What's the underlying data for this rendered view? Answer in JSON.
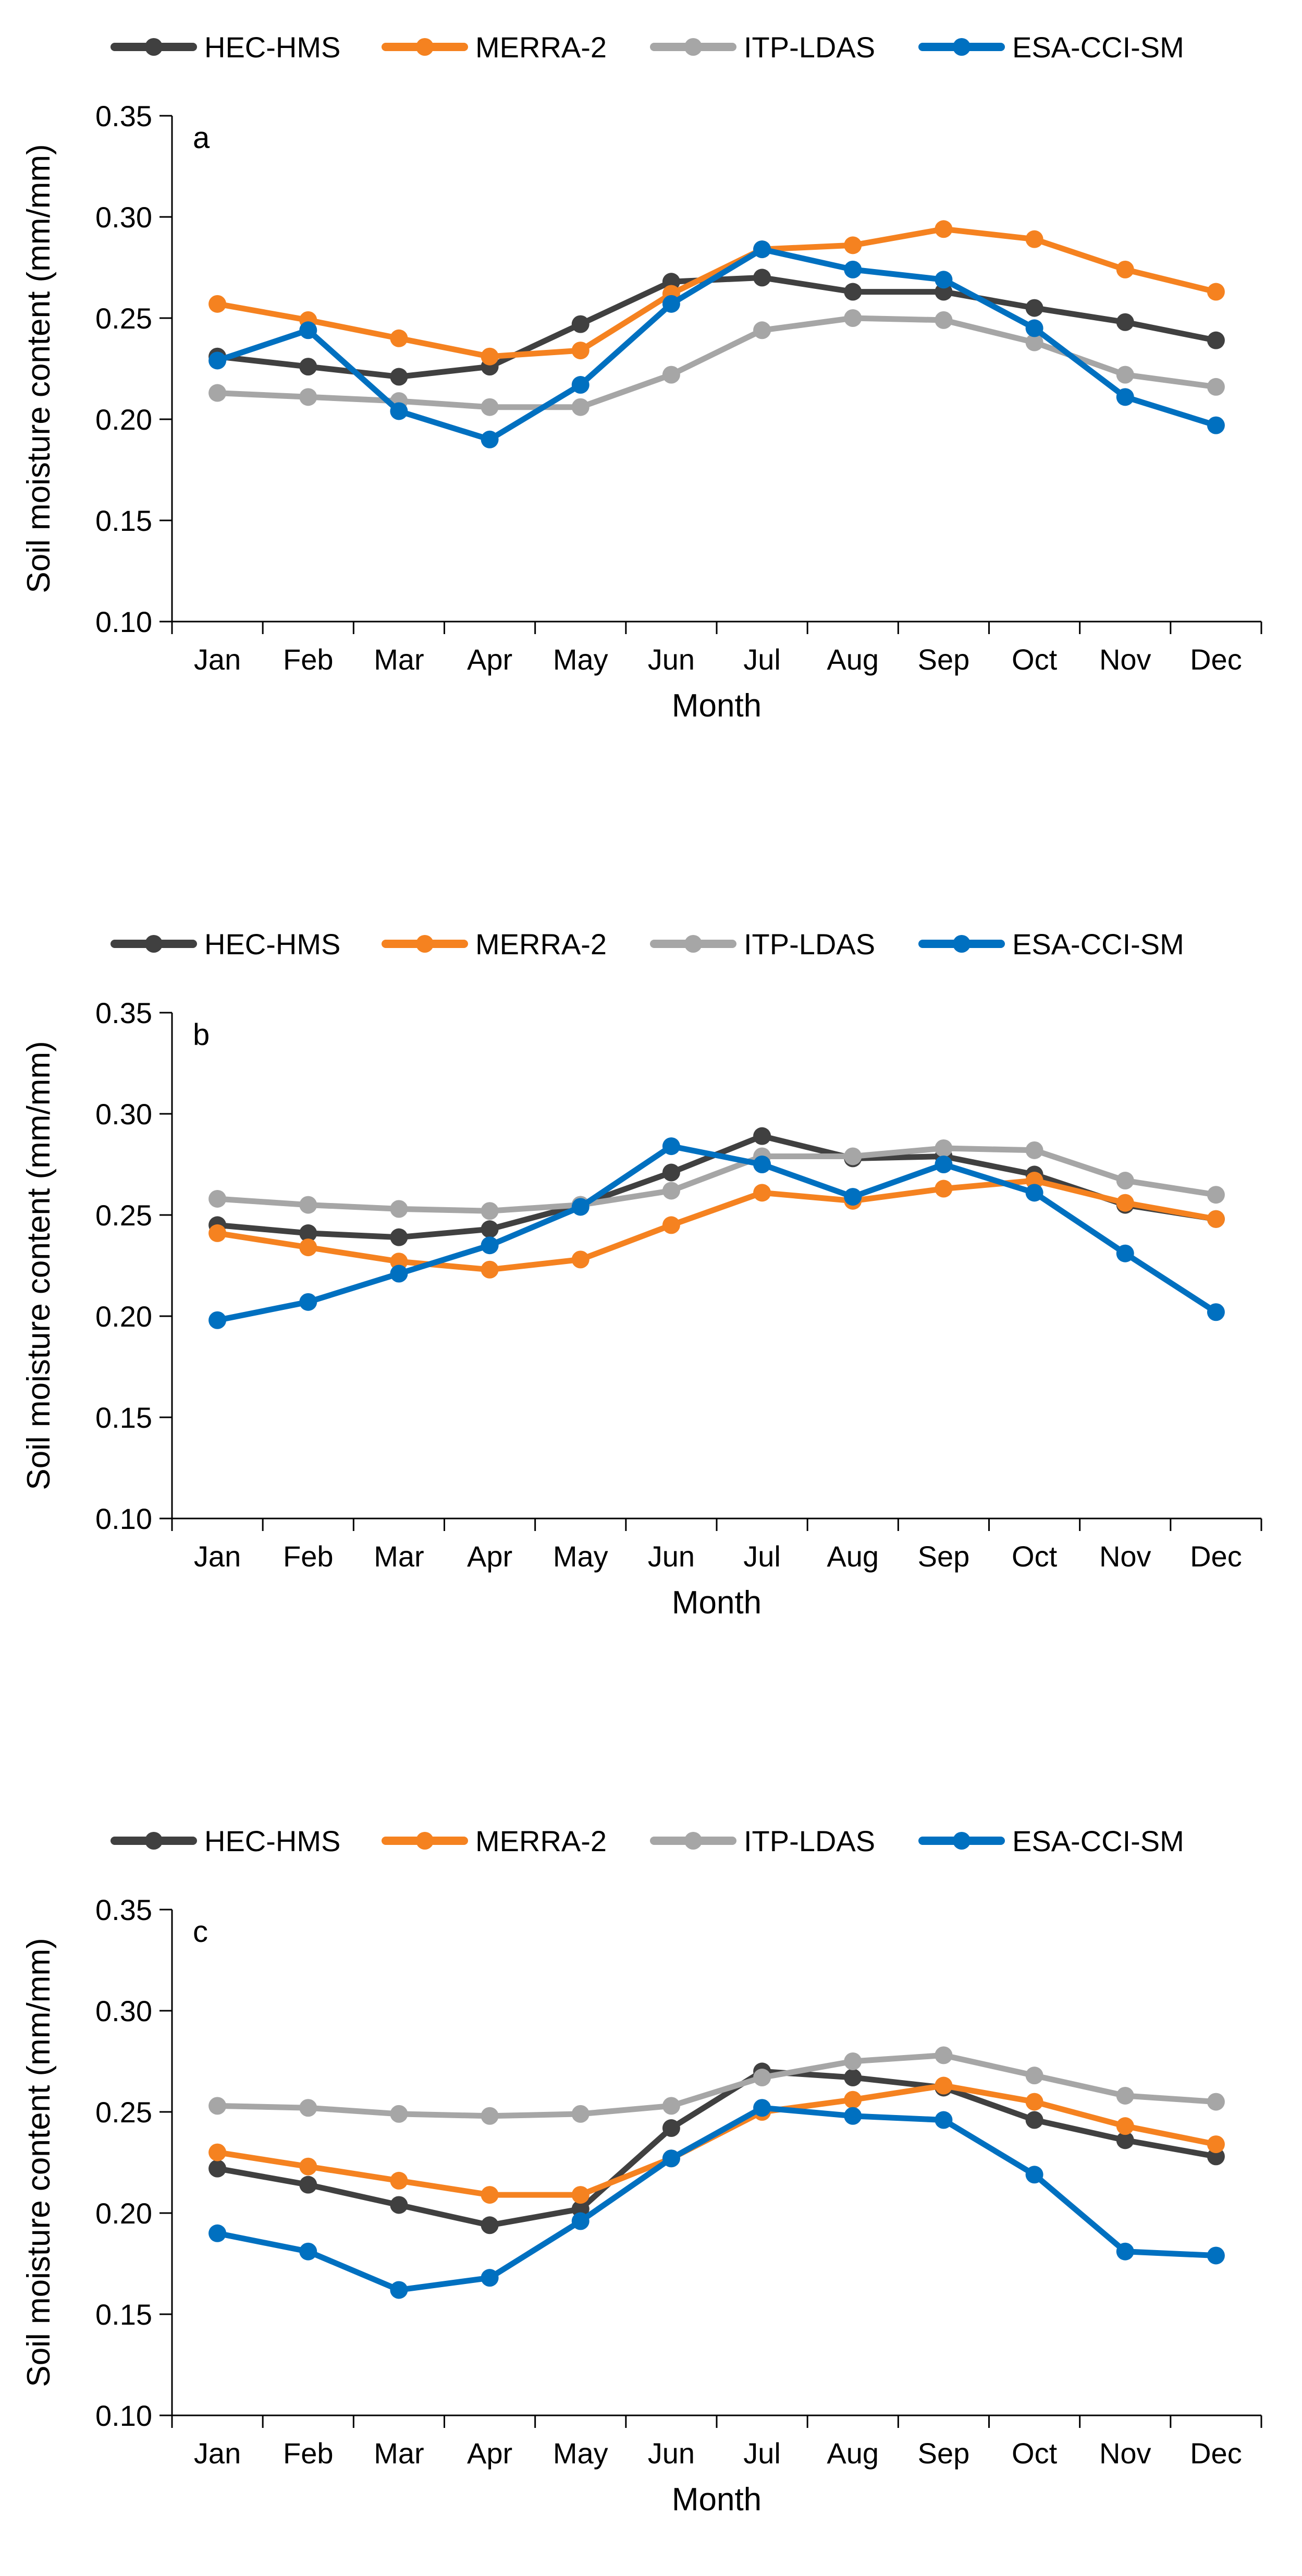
{
  "chart_data": [
    {
      "type": "line",
      "panel_label": "a",
      "categories": [
        "Jan",
        "Feb",
        "Mar",
        "Apr",
        "May",
        "Jun",
        "Jul",
        "Aug",
        "Sep",
        "Oct",
        "Nov",
        "Dec"
      ],
      "xlabel": "Month",
      "ylabel": "Soil moisture content (mm/mm)",
      "ylim": [
        0.1,
        0.35
      ],
      "yticks": [
        "0.10",
        "0.15",
        "0.20",
        "0.25",
        "0.30",
        "0.35"
      ],
      "legend_position": "top",
      "series": [
        {
          "name": "HEC-HMS",
          "color": "#404040",
          "values": [
            0.231,
            0.226,
            0.221,
            0.226,
            0.247,
            0.268,
            0.27,
            0.263,
            0.263,
            0.255,
            0.248,
            0.239
          ]
        },
        {
          "name": "MERRA-2",
          "color": "#f58220",
          "values": [
            0.257,
            0.249,
            0.24,
            0.231,
            0.234,
            0.262,
            0.284,
            0.286,
            0.294,
            0.289,
            0.274,
            0.263
          ]
        },
        {
          "name": "ITP-LDAS",
          "color": "#a6a6a6",
          "values": [
            0.213,
            0.211,
            0.209,
            0.206,
            0.206,
            0.222,
            0.244,
            0.25,
            0.249,
            0.238,
            0.222,
            0.216
          ]
        },
        {
          "name": "ESA-CCI-SM",
          "color": "#0070c0",
          "values": [
            0.229,
            0.244,
            0.204,
            0.19,
            0.217,
            0.257,
            0.284,
            0.274,
            0.269,
            0.245,
            0.211,
            0.197
          ]
        }
      ]
    },
    {
      "type": "line",
      "panel_label": "b",
      "categories": [
        "Jan",
        "Feb",
        "Mar",
        "Apr",
        "May",
        "Jun",
        "Jul",
        "Aug",
        "Sep",
        "Oct",
        "Nov",
        "Dec"
      ],
      "xlabel": "Month",
      "ylabel": "Soil moisture content (mm/mm)",
      "ylim": [
        0.1,
        0.35
      ],
      "yticks": [
        "0.10",
        "0.15",
        "0.20",
        "0.25",
        "0.30",
        "0.35"
      ],
      "legend_position": "top",
      "series": [
        {
          "name": "HEC-HMS",
          "color": "#404040",
          "values": [
            0.245,
            0.241,
            0.239,
            0.243,
            0.255,
            0.271,
            0.289,
            0.278,
            0.279,
            0.27,
            0.255,
            0.248
          ]
        },
        {
          "name": "MERRA-2",
          "color": "#f58220",
          "values": [
            0.241,
            0.234,
            0.227,
            0.223,
            0.228,
            0.245,
            0.261,
            0.257,
            0.263,
            0.267,
            0.256,
            0.248
          ]
        },
        {
          "name": "ITP-LDAS",
          "color": "#a6a6a6",
          "values": [
            0.258,
            0.255,
            0.253,
            0.252,
            0.255,
            0.262,
            0.279,
            0.279,
            0.283,
            0.282,
            0.267,
            0.26
          ]
        },
        {
          "name": "ESA-CCI-SM",
          "color": "#0070c0",
          "values": [
            0.198,
            0.207,
            0.221,
            0.235,
            0.254,
            0.284,
            0.275,
            0.259,
            0.275,
            0.261,
            0.231,
            0.202
          ]
        }
      ]
    },
    {
      "type": "line",
      "panel_label": "c",
      "categories": [
        "Jan",
        "Feb",
        "Mar",
        "Apr",
        "May",
        "Jun",
        "Jul",
        "Aug",
        "Sep",
        "Oct",
        "Nov",
        "Dec"
      ],
      "xlabel": "Month",
      "ylabel": "Soil moisture content (mm/mm)",
      "ylim": [
        0.1,
        0.35
      ],
      "yticks": [
        "0.10",
        "0.15",
        "0.20",
        "0.25",
        "0.30",
        "0.35"
      ],
      "legend_position": "top",
      "series": [
        {
          "name": "HEC-HMS",
          "color": "#404040",
          "values": [
            0.222,
            0.214,
            0.204,
            0.194,
            0.202,
            0.242,
            0.27,
            0.267,
            0.262,
            0.246,
            0.236,
            0.228
          ]
        },
        {
          "name": "MERRA-2",
          "color": "#f58220",
          "values": [
            0.23,
            0.223,
            0.216,
            0.209,
            0.209,
            0.227,
            0.25,
            0.256,
            0.263,
            0.255,
            0.243,
            0.234
          ]
        },
        {
          "name": "ITP-LDAS",
          "color": "#a6a6a6",
          "values": [
            0.253,
            0.252,
            0.249,
            0.248,
            0.249,
            0.253,
            0.267,
            0.275,
            0.278,
            0.268,
            0.258,
            0.255
          ]
        },
        {
          "name": "ESA-CCI-SM",
          "color": "#0070c0",
          "values": [
            0.19,
            0.181,
            0.162,
            0.168,
            0.196,
            0.227,
            0.252,
            0.248,
            0.246,
            0.219,
            0.181,
            0.179
          ]
        }
      ]
    }
  ]
}
